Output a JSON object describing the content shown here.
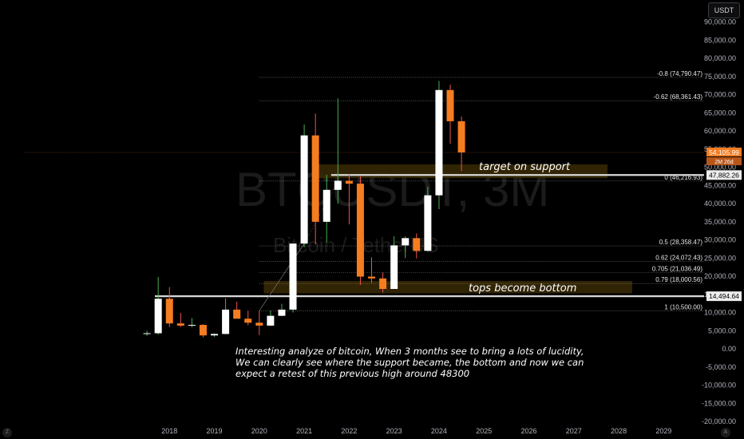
{
  "header": {
    "currency_button": "USDT"
  },
  "watermark": {
    "symbol": "BTCUSDT, 3M",
    "name": "Bitcoin / TetherUS"
  },
  "price_tags": {
    "current_price": "54,105.99",
    "countdown": "2M 26d",
    "support_price": "47,882.26",
    "tops_price": "14,494.64"
  },
  "annotations": {
    "target": "target on support",
    "tops": "tops become bottom"
  },
  "note": {
    "line1": "Interesting analyze of bitcoin, When 3 months see to bring a lots of lucidity,",
    "line2": "We can clearly see where the support became, the bottom and now we can",
    "line3": " expect a retest of this previous high around 48300"
  },
  "corner_icons": {
    "left": "Z",
    "right": "A"
  },
  "colors": {
    "up_body": "#ffffff",
    "down_body": "#f57c1f",
    "up_wick": "#4caf50",
    "down_wick": "#ef5350",
    "zone": "#3a2a05",
    "tag_orange": "#f57c1f"
  },
  "chart_data": {
    "type": "candlestick",
    "title": "BTCUSDT, 3M",
    "xlabel": "",
    "ylabel": "",
    "ylim": [
      -20000,
      95000
    ],
    "y_ticks": [
      -20000,
      -15000,
      -10000,
      -5000,
      0,
      5000,
      10000,
      15000,
      20000,
      25000,
      30000,
      35000,
      40000,
      45000,
      50000,
      55000,
      60000,
      65000,
      70000,
      75000,
      80000,
      85000,
      90000
    ],
    "y_tick_labels": [
      "-20,000.00",
      "-15,000.00",
      "-10,000.00",
      "-5,000.00",
      "0.00",
      "5,000.00",
      "10,000.00",
      "15,000.00",
      "20,000.00",
      "25,000.00",
      "30,000.00",
      "35,000.00",
      "40,000.00",
      "45,000.00",
      "50,000.00",
      "55,000.00",
      "60,000.00",
      "65,000.00",
      "70,000.00",
      "75,000.00",
      "80,000.00",
      "85,000.00",
      "90,000.00"
    ],
    "x_ticks": [
      "2018",
      "2019",
      "2020",
      "2021",
      "2022",
      "2023",
      "2024",
      "2025",
      "2026",
      "2027",
      "2028",
      "2029"
    ],
    "x_tick_values": [
      2018.0,
      2019.0,
      2020.0,
      2021.0,
      2022.0,
      2023.0,
      2024.0,
      2025.0,
      2026.0,
      2027.0,
      2028.0,
      2029.0
    ],
    "xlim": [
      2014.3,
      2029.9
    ],
    "candles": [
      {
        "t": 2017.5,
        "o": 4300,
        "h": 5000,
        "l": 3600,
        "c": 4300
      },
      {
        "t": 2017.75,
        "o": 4300,
        "h": 19800,
        "l": 3900,
        "c": 13800
      },
      {
        "t": 2018.0,
        "o": 13800,
        "h": 17000,
        "l": 6000,
        "c": 7000
      },
      {
        "t": 2018.25,
        "o": 7000,
        "h": 9900,
        "l": 6000,
        "c": 6400
      },
      {
        "t": 2018.5,
        "o": 6400,
        "h": 8500,
        "l": 5900,
        "c": 6600
      },
      {
        "t": 2018.75,
        "o": 6600,
        "h": 6800,
        "l": 3200,
        "c": 3700
      },
      {
        "t": 2019.0,
        "o": 3700,
        "h": 4200,
        "l": 3300,
        "c": 4100
      },
      {
        "t": 2019.25,
        "o": 4100,
        "h": 13900,
        "l": 4000,
        "c": 10800
      },
      {
        "t": 2019.5,
        "o": 10800,
        "h": 13000,
        "l": 9000,
        "c": 8300
      },
      {
        "t": 2019.75,
        "o": 8300,
        "h": 10500,
        "l": 6500,
        "c": 7200
      },
      {
        "t": 2020.0,
        "o": 7200,
        "h": 10500,
        "l": 3800,
        "c": 6400
      },
      {
        "t": 2020.25,
        "o": 6400,
        "h": 10500,
        "l": 6300,
        "c": 9100
      },
      {
        "t": 2020.5,
        "o": 9100,
        "h": 12400,
        "l": 9000,
        "c": 10800
      },
      {
        "t": 2020.75,
        "o": 10800,
        "h": 29000,
        "l": 10000,
        "c": 29000
      },
      {
        "t": 2021.0,
        "o": 29000,
        "h": 61800,
        "l": 28000,
        "c": 58800
      },
      {
        "t": 2021.25,
        "o": 58800,
        "h": 64800,
        "l": 28800,
        "c": 35000
      },
      {
        "t": 2021.5,
        "o": 35000,
        "h": 48000,
        "l": 29300,
        "c": 43800
      },
      {
        "t": 2021.75,
        "o": 43800,
        "h": 69000,
        "l": 40000,
        "c": 46300
      },
      {
        "t": 2022.0,
        "o": 46300,
        "h": 48200,
        "l": 34300,
        "c": 45500
      },
      {
        "t": 2022.25,
        "o": 45500,
        "h": 47500,
        "l": 17600,
        "c": 19900
      },
      {
        "t": 2022.5,
        "o": 19900,
        "h": 25200,
        "l": 18200,
        "c": 19400
      },
      {
        "t": 2022.75,
        "o": 19400,
        "h": 21000,
        "l": 15500,
        "c": 16500
      },
      {
        "t": 2023.0,
        "o": 16500,
        "h": 31000,
        "l": 16500,
        "c": 28500
      },
      {
        "t": 2023.25,
        "o": 28500,
        "h": 31000,
        "l": 25000,
        "c": 30500
      },
      {
        "t": 2023.5,
        "o": 30500,
        "h": 31800,
        "l": 24900,
        "c": 27000
      },
      {
        "t": 2023.75,
        "o": 27000,
        "h": 44700,
        "l": 26800,
        "c": 42300
      },
      {
        "t": 2024.0,
        "o": 42300,
        "h": 73800,
        "l": 38500,
        "c": 71300
      },
      {
        "t": 2024.25,
        "o": 71300,
        "h": 72800,
        "l": 56500,
        "c": 62700
      },
      {
        "t": 2024.5,
        "o": 62700,
        "h": 64000,
        "l": 49000,
        "c": 54105.99
      }
    ],
    "fib_levels": [
      {
        "label": "-0.8 (74,790.47)",
        "value": 74790.47
      },
      {
        "label": "-0.62 (68,361.43)",
        "value": 68361.43
      },
      {
        "label": "0 (46,216.93)",
        "value": 46216.93
      },
      {
        "label": "0.5 (28,358.47)",
        "value": 28358.47
      },
      {
        "label": "0.62 (24,072.43)",
        "value": 24072.43
      },
      {
        "label": "0.705 (21,036.49)",
        "value": 21036.49
      },
      {
        "label": "0.79 (18,000.56)",
        "value": 18000.56
      },
      {
        "label": "1 (10,500.00)",
        "value": 10500.0
      }
    ],
    "zones": [
      {
        "from": 2021.3,
        "to": 2027.75,
        "low": 47000,
        "high": 50800
      },
      {
        "from": 2020.1,
        "to": 2028.3,
        "low": 15300,
        "high": 18700
      }
    ],
    "horizontal_lines": [
      47882.26,
      14494.64
    ]
  }
}
